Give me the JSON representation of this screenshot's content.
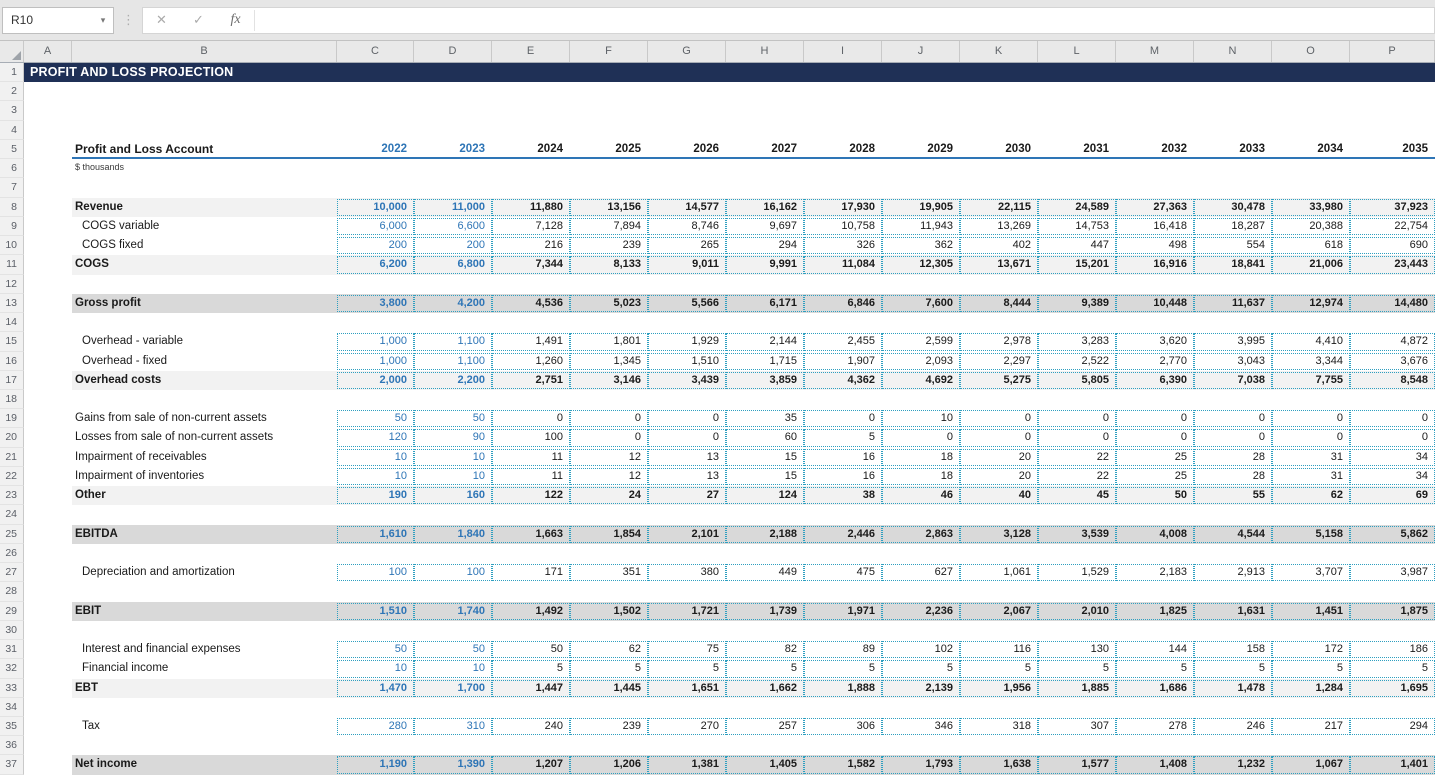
{
  "app": {
    "name_box": "R10",
    "formula_value": "",
    "fx_label": "fx",
    "cancel_glyph": "✕",
    "enter_glyph": "✓",
    "dropdown_glyph": "▾",
    "splitter_glyph": "⋮"
  },
  "columns": [
    "A",
    "B",
    "C",
    "D",
    "E",
    "F",
    "G",
    "H",
    "I",
    "J",
    "K",
    "L",
    "M",
    "N",
    "O",
    "P"
  ],
  "row_count": 37,
  "title": {
    "row": 1,
    "text": "PROFIT AND LOSS PROJECTION"
  },
  "table": {
    "header_row": 5,
    "header_label": "Profit and Loss Account",
    "years": [
      "2022",
      "2023",
      "2024",
      "2025",
      "2026",
      "2027",
      "2028",
      "2029",
      "2030",
      "2031",
      "2032",
      "2033",
      "2034",
      "2035"
    ],
    "input_year_count": 2,
    "subtitle_row": 6,
    "subtitle": "$ thousands",
    "rows": [
      {
        "row": 8,
        "label": "Revenue",
        "bold": true,
        "indent": false,
        "fill": "light",
        "values": [
          "10,000",
          "11,000",
          "11,880",
          "13,156",
          "14,577",
          "16,162",
          "17,930",
          "19,905",
          "22,115",
          "24,589",
          "27,363",
          "30,478",
          "33,980",
          "37,923"
        ]
      },
      {
        "row": 9,
        "label": "COGS variable",
        "bold": false,
        "indent": true,
        "fill": "none",
        "values": [
          "6,000",
          "6,600",
          "7,128",
          "7,894",
          "8,746",
          "9,697",
          "10,758",
          "11,943",
          "13,269",
          "14,753",
          "16,418",
          "18,287",
          "20,388",
          "22,754"
        ]
      },
      {
        "row": 10,
        "label": "COGS fixed",
        "bold": false,
        "indent": true,
        "fill": "none",
        "values": [
          "200",
          "200",
          "216",
          "239",
          "265",
          "294",
          "326",
          "362",
          "402",
          "447",
          "498",
          "554",
          "618",
          "690"
        ]
      },
      {
        "row": 11,
        "label": "COGS",
        "bold": true,
        "indent": false,
        "fill": "light",
        "values": [
          "6,200",
          "6,800",
          "7,344",
          "8,133",
          "9,011",
          "9,991",
          "11,084",
          "12,305",
          "13,671",
          "15,201",
          "16,916",
          "18,841",
          "21,006",
          "23,443"
        ]
      },
      {
        "row": 13,
        "label": "Gross profit",
        "bold": true,
        "indent": false,
        "fill": "dark",
        "values": [
          "3,800",
          "4,200",
          "4,536",
          "5,023",
          "5,566",
          "6,171",
          "6,846",
          "7,600",
          "8,444",
          "9,389",
          "10,448",
          "11,637",
          "12,974",
          "14,480"
        ]
      },
      {
        "row": 15,
        "label": "Overhead - variable",
        "bold": false,
        "indent": true,
        "fill": "none",
        "values": [
          "1,000",
          "1,100",
          "1,491",
          "1,801",
          "1,929",
          "2,144",
          "2,455",
          "2,599",
          "2,978",
          "3,283",
          "3,620",
          "3,995",
          "4,410",
          "4,872"
        ]
      },
      {
        "row": 16,
        "label": "Overhead - fixed",
        "bold": false,
        "indent": true,
        "fill": "none",
        "values": [
          "1,000",
          "1,100",
          "1,260",
          "1,345",
          "1,510",
          "1,715",
          "1,907",
          "2,093",
          "2,297",
          "2,522",
          "2,770",
          "3,043",
          "3,344",
          "3,676"
        ]
      },
      {
        "row": 17,
        "label": "Overhead costs",
        "bold": true,
        "indent": false,
        "fill": "light",
        "values": [
          "2,000",
          "2,200",
          "2,751",
          "3,146",
          "3,439",
          "3,859",
          "4,362",
          "4,692",
          "5,275",
          "5,805",
          "6,390",
          "7,038",
          "7,755",
          "8,548"
        ]
      },
      {
        "row": 19,
        "label": "Gains from sale of non-current assets",
        "bold": false,
        "indent": false,
        "fill": "none",
        "values": [
          "50",
          "50",
          "0",
          "0",
          "0",
          "35",
          "0",
          "10",
          "0",
          "0",
          "0",
          "0",
          "0",
          "0"
        ]
      },
      {
        "row": 20,
        "label": "Losses from sale of non-current assets",
        "bold": false,
        "indent": false,
        "fill": "none",
        "values": [
          "120",
          "90",
          "100",
          "0",
          "0",
          "60",
          "5",
          "0",
          "0",
          "0",
          "0",
          "0",
          "0",
          "0"
        ]
      },
      {
        "row": 21,
        "label": "Impairment of receivables",
        "bold": false,
        "indent": false,
        "fill": "none",
        "values": [
          "10",
          "10",
          "11",
          "12",
          "13",
          "15",
          "16",
          "18",
          "20",
          "22",
          "25",
          "28",
          "31",
          "34"
        ]
      },
      {
        "row": 22,
        "label": "Impairment of inventories",
        "bold": false,
        "indent": false,
        "fill": "none",
        "values": [
          "10",
          "10",
          "11",
          "12",
          "13",
          "15",
          "16",
          "18",
          "20",
          "22",
          "25",
          "28",
          "31",
          "34"
        ]
      },
      {
        "row": 23,
        "label": "Other",
        "bold": true,
        "indent": false,
        "fill": "light",
        "values": [
          "190",
          "160",
          "122",
          "24",
          "27",
          "124",
          "38",
          "46",
          "40",
          "45",
          "50",
          "55",
          "62",
          "69"
        ]
      },
      {
        "row": 25,
        "label": "EBITDA",
        "bold": true,
        "indent": false,
        "fill": "dark",
        "values": [
          "1,610",
          "1,840",
          "1,663",
          "1,854",
          "2,101",
          "2,188",
          "2,446",
          "2,863",
          "3,128",
          "3,539",
          "4,008",
          "4,544",
          "5,158",
          "5,862"
        ]
      },
      {
        "row": 27,
        "label": "Depreciation and amortization",
        "bold": false,
        "indent": true,
        "fill": "none",
        "values": [
          "100",
          "100",
          "171",
          "351",
          "380",
          "449",
          "475",
          "627",
          "1,061",
          "1,529",
          "2,183",
          "2,913",
          "3,707",
          "3,987"
        ]
      },
      {
        "row": 29,
        "label": "EBIT",
        "bold": true,
        "indent": false,
        "fill": "dark",
        "values": [
          "1,510",
          "1,740",
          "1,492",
          "1,502",
          "1,721",
          "1,739",
          "1,971",
          "2,236",
          "2,067",
          "2,010",
          "1,825",
          "1,631",
          "1,451",
          "1,875"
        ]
      },
      {
        "row": 31,
        "label": "Interest and financial expenses",
        "bold": false,
        "indent": true,
        "fill": "none",
        "values": [
          "50",
          "50",
          "50",
          "62",
          "75",
          "82",
          "89",
          "102",
          "116",
          "130",
          "144",
          "158",
          "172",
          "186"
        ]
      },
      {
        "row": 32,
        "label": "Financial income",
        "bold": false,
        "indent": true,
        "fill": "none",
        "values": [
          "10",
          "10",
          "5",
          "5",
          "5",
          "5",
          "5",
          "5",
          "5",
          "5",
          "5",
          "5",
          "5",
          "5"
        ]
      },
      {
        "row": 33,
        "label": "EBT",
        "bold": true,
        "indent": false,
        "fill": "light",
        "values": [
          "1,470",
          "1,700",
          "1,447",
          "1,445",
          "1,651",
          "1,662",
          "1,888",
          "2,139",
          "1,956",
          "1,885",
          "1,686",
          "1,478",
          "1,284",
          "1,695"
        ]
      },
      {
        "row": 35,
        "label": "Tax",
        "bold": false,
        "indent": true,
        "fill": "none",
        "values": [
          "280",
          "310",
          "240",
          "239",
          "270",
          "257",
          "306",
          "346",
          "318",
          "307",
          "278",
          "246",
          "217",
          "294"
        ]
      },
      {
        "row": 37,
        "label": "Net income",
        "bold": true,
        "indent": false,
        "fill": "dark",
        "values": [
          "1,190",
          "1,390",
          "1,207",
          "1,206",
          "1,381",
          "1,405",
          "1,582",
          "1,793",
          "1,638",
          "1,577",
          "1,408",
          "1,232",
          "1,067",
          "1,401"
        ]
      }
    ]
  },
  "colors": {
    "accent_blue": "#2E75B6",
    "banner_navy": "#1F3056",
    "dotted_border": "#2E9FC0",
    "fill_light": "#F2F2F2",
    "fill_dark": "#D9D9D9"
  }
}
